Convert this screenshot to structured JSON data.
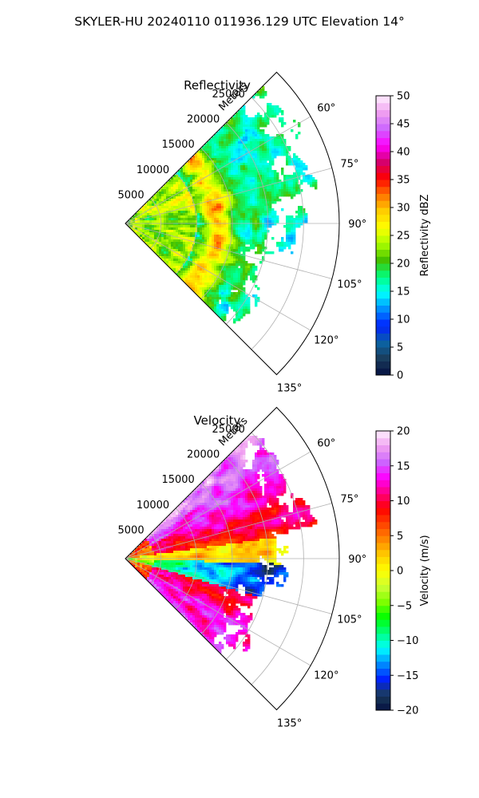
{
  "suptitle": "SKYLER-HU  20240110  011936.129 UTC Elevation 14°",
  "colors": {
    "ring": "#b0b0b0",
    "spoke": "#b0b0b0",
    "frame": "#000000"
  },
  "chart_data": [
    {
      "type": "heatmap",
      "projection": "polar-sector",
      "title": "Reflectivity",
      "radial_label": "Meters",
      "radial_ticks": [
        "5000",
        "10000",
        "15000",
        "20000",
        "25000"
      ],
      "radial_values": [
        5000,
        10000,
        15000,
        20000,
        25000
      ],
      "r_max": 30000,
      "angle_range_deg": [
        45,
        135
      ],
      "angle_ticks": [
        "60°",
        "75°",
        "90°",
        "105°",
        "120°",
        "135°"
      ],
      "angle_values": [
        60,
        75,
        90,
        105,
        120,
        135
      ],
      "colorbar": {
        "label": "Reflectivity dBZ",
        "range": [
          0,
          50
        ],
        "ticks": [
          "0",
          "5",
          "10",
          "15",
          "20",
          "25",
          "30",
          "35",
          "40",
          "45",
          "50"
        ],
        "tick_values": [
          0,
          5,
          10,
          15,
          20,
          25,
          30,
          35,
          40,
          45,
          50
        ],
        "colormap": "NWSRef",
        "stops": [
          "#051042",
          "#1a3b5a",
          "#0b63a5",
          "#0020ff",
          "#008cff",
          "#00ffff",
          "#00ff80",
          "#44c000",
          "#aaff00",
          "#ffff00",
          "#ffcc00",
          "#ff7300",
          "#ff0000",
          "#d40070",
          "#ff00ff",
          "#cc66ff",
          "#f0a0f0",
          "#fff0ff"
        ]
      },
      "field_summary": "Echo fills the sector from the radar out to about 22000 m (to ~28000 m near 60°–75°), mostly 18–28 dBZ (green to yellow), with embedded bands of 30–38 dBZ (orange/red) near 12000–15000 m; echo-free beyond the edge of the precipitation."
    },
    {
      "type": "heatmap",
      "projection": "polar-sector",
      "title": "Velocity",
      "radial_label": "Meters",
      "radial_ticks": [
        "5000",
        "10000",
        "15000",
        "20000",
        "25000"
      ],
      "radial_values": [
        5000,
        10000,
        15000,
        20000,
        25000
      ],
      "r_max": 30000,
      "angle_range_deg": [
        45,
        135
      ],
      "angle_ticks": [
        "60°",
        "75°",
        "90°",
        "105°",
        "120°",
        "135°"
      ],
      "angle_values": [
        60,
        75,
        90,
        105,
        120,
        135
      ],
      "colorbar": {
        "label": "Velocity (m/s)",
        "range": [
          -20,
          20
        ],
        "ticks": [
          "−20",
          "−15",
          "−10",
          "−5",
          "0",
          "5",
          "10",
          "15",
          "20"
        ],
        "tick_values": [
          -20,
          -15,
          -10,
          -5,
          0,
          5,
          10,
          15,
          20
        ],
        "colormap": "velocity",
        "stops": [
          "#051042",
          "#1a3b5a",
          "#0020ff",
          "#008cff",
          "#00ffff",
          "#00ff80",
          "#00ff00",
          "#80ff00",
          "#ccff33",
          "#ffff00",
          "#ffcc00",
          "#ff8800",
          "#ff4400",
          "#ff0000",
          "#ff0080",
          "#ff00ff",
          "#cc66ff",
          "#f0a0f0",
          "#fff0ff"
        ]
      },
      "field_summary": "Outbound (positive, red/magenta up to about 15 m/s) along the upper and lower flanks near 60°–75° and 105°–120°, near-zero yellow/green in between, and inbound (negative, cyan/blue down to about −15 m/s) near 90°–105° at 15000–20000 m."
    }
  ]
}
